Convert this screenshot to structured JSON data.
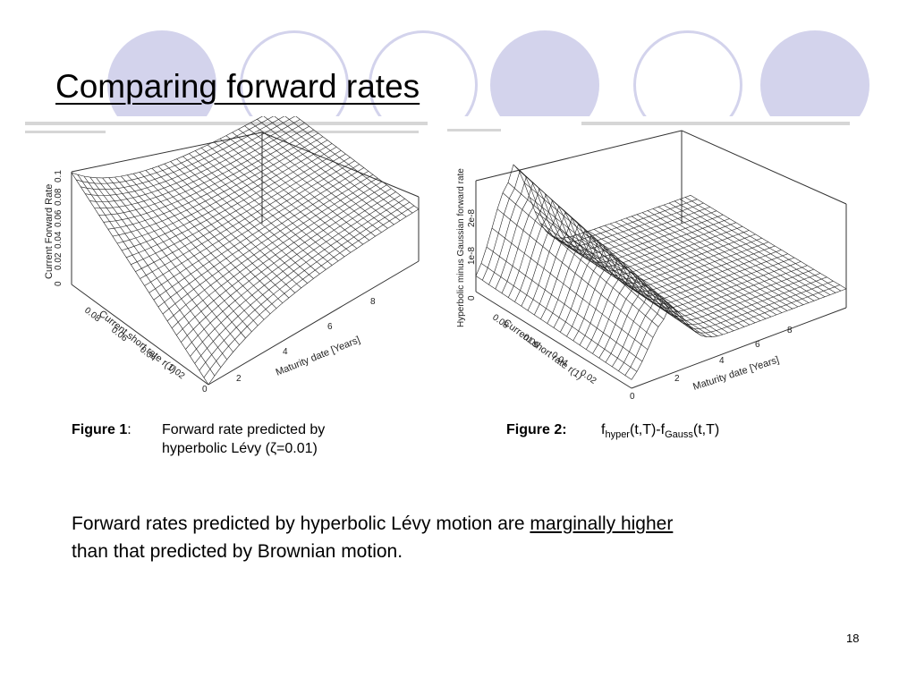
{
  "slide": {
    "title": "Comparing forward rates",
    "page_number": "18"
  },
  "figure1": {
    "z_axis_label": "Current Forward Rate",
    "z_ticks": [
      "0",
      "0.02",
      "0.04",
      "0.06",
      "0.08",
      "0.1"
    ],
    "x_axis_label": "Current short rate r(1)",
    "x_ticks": [
      "0.08",
      "0.06",
      "0.04",
      "0.02",
      "0"
    ],
    "y_axis_label": "Maturity date [Years]",
    "y_ticks": [
      "2",
      "4",
      "6",
      "8"
    ],
    "caption_label": "Figure 1",
    "caption_colon": ":",
    "caption_line1": "Forward rate predicted by",
    "caption_line2": "hyperbolic Lévy (ζ=0.01)"
  },
  "figure2": {
    "z_axis_label": "Hyperbolic minus Gaussian forward rate",
    "z_ticks": [
      "0",
      "1e-8",
      "2e-8"
    ],
    "x_axis_label": "Current short rate r(1)",
    "x_ticks": [
      "0.08",
      "0.06",
      "0.04",
      "0.02"
    ],
    "y_axis_label": "Maturity date [Years]",
    "y_ticks": [
      "0",
      "2",
      "4",
      "6",
      "8"
    ],
    "caption_label": "Figure 2:",
    "f1": "f",
    "sub1": "hyper",
    "mid": "(t,T)-f",
    "sub2": "Gauss",
    "end": "(t,T)"
  },
  "body": {
    "text_before": "Forward rates predicted by hyperbolic Lévy motion are ",
    "text_underlined": "marginally higher",
    "text_line2": "than that predicted by Brownian motion."
  },
  "colors": {
    "circle_fill": "#d3d3ec",
    "circle_outline": "#d3d3ec"
  }
}
